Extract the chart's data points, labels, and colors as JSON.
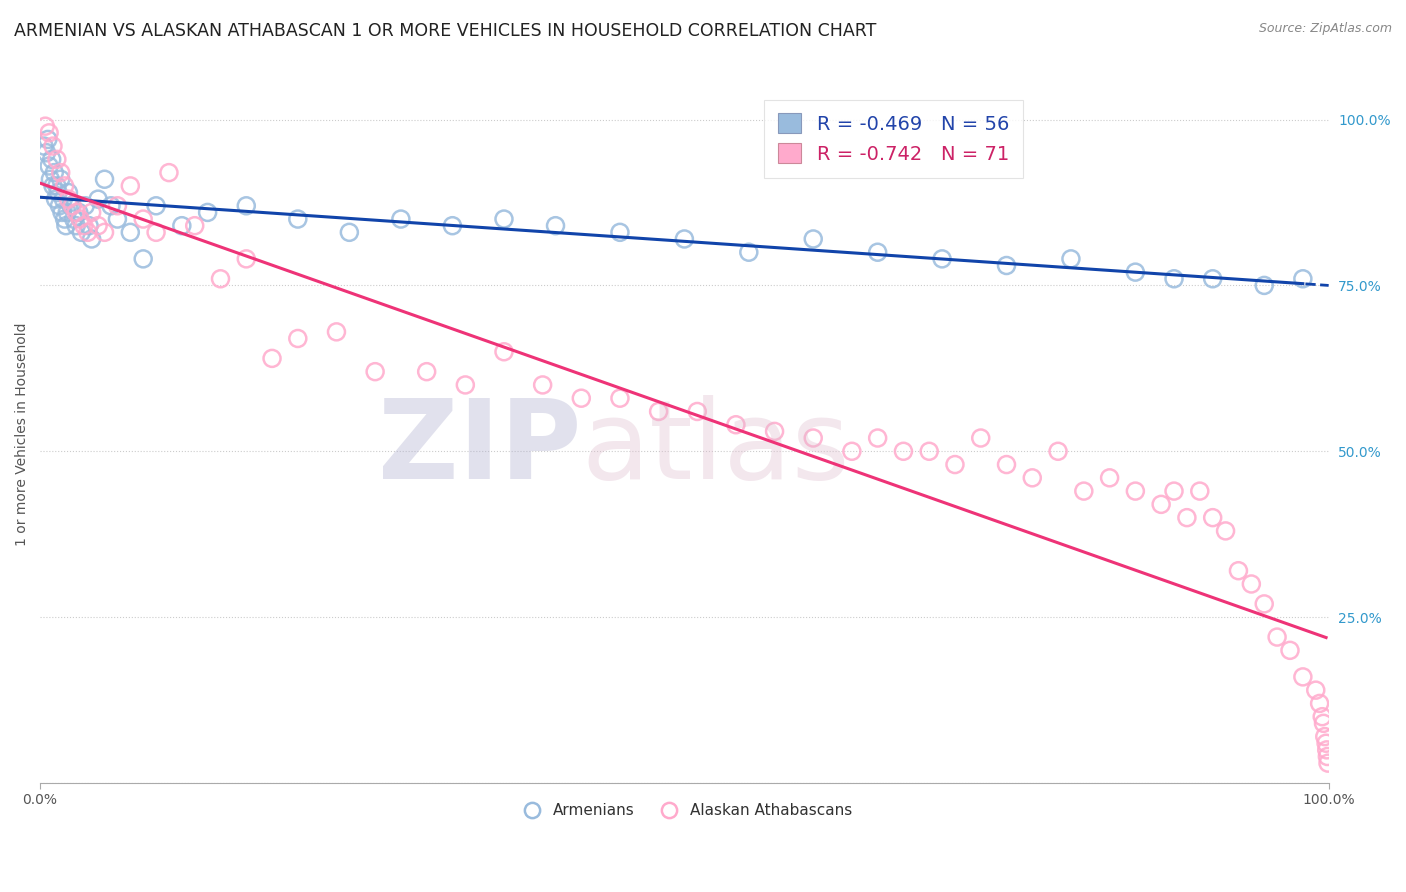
{
  "title": "ARMENIAN VS ALASKAN ATHABASCAN 1 OR MORE VEHICLES IN HOUSEHOLD CORRELATION CHART",
  "source_text": "Source: ZipAtlas.com",
  "ylabel": "1 or more Vehicles in Household",
  "legend_armenians": "Armenians",
  "legend_athabascan": "Alaskan Athabascans",
  "r_armenian": -0.469,
  "n_armenian": 56,
  "r_athabascan": -0.742,
  "n_athabascan": 71,
  "color_blue": "#99BBDD",
  "color_pink": "#FFAACC",
  "trend_blue": "#1144AA",
  "trend_pink": "#EE3377",
  "xlim": [
    0.0,
    100.0
  ],
  "ylim": [
    0.0,
    105.0
  ],
  "yticks": [
    0.0,
    25.0,
    50.0,
    75.0,
    100.0
  ],
  "grid_color": "#CCCCCC",
  "background_color": "#FFFFFF",
  "title_fontsize": 12.5,
  "axis_label_fontsize": 10,
  "tick_fontsize": 10,
  "source_fontsize": 9,
  "blue_x": [
    0.3,
    0.5,
    0.6,
    0.7,
    0.8,
    0.9,
    1.0,
    1.1,
    1.2,
    1.3,
    1.4,
    1.5,
    1.6,
    1.7,
    1.8,
    1.9,
    2.0,
    2.1,
    2.2,
    2.4,
    2.6,
    2.8,
    3.0,
    3.2,
    3.5,
    3.8,
    4.0,
    4.5,
    5.0,
    5.5,
    6.0,
    7.0,
    8.0,
    9.0,
    11.0,
    13.0,
    16.0,
    20.0,
    24.0,
    28.0,
    32.0,
    36.0,
    40.0,
    45.0,
    50.0,
    55.0,
    60.0,
    65.0,
    70.0,
    75.0,
    80.0,
    85.0,
    88.0,
    91.0,
    95.0,
    98.0
  ],
  "blue_y": [
    96,
    95,
    97,
    93,
    91,
    94,
    90,
    92,
    88,
    90,
    89,
    87,
    91,
    86,
    88,
    85,
    84,
    86,
    89,
    87,
    85,
    84,
    86,
    83,
    87,
    84,
    82,
    88,
    91,
    87,
    85,
    83,
    79,
    87,
    84,
    86,
    87,
    85,
    83,
    85,
    84,
    85,
    84,
    83,
    82,
    80,
    82,
    80,
    79,
    78,
    79,
    77,
    76,
    76,
    75,
    76
  ],
  "pink_x": [
    0.4,
    0.7,
    1.0,
    1.3,
    1.6,
    1.9,
    2.2,
    2.5,
    2.8,
    3.1,
    3.4,
    3.7,
    4.0,
    4.5,
    5.0,
    6.0,
    7.0,
    8.0,
    9.0,
    10.0,
    12.0,
    14.0,
    16.0,
    18.0,
    20.0,
    23.0,
    26.0,
    30.0,
    33.0,
    36.0,
    39.0,
    42.0,
    45.0,
    48.0,
    51.0,
    54.0,
    57.0,
    60.0,
    63.0,
    65.0,
    67.0,
    69.0,
    71.0,
    73.0,
    75.0,
    77.0,
    79.0,
    81.0,
    83.0,
    85.0,
    87.0,
    88.0,
    89.0,
    90.0,
    91.0,
    92.0,
    93.0,
    94.0,
    95.0,
    96.0,
    97.0,
    98.0,
    99.0,
    99.3,
    99.5,
    99.6,
    99.7,
    99.8,
    99.85,
    99.9,
    99.95
  ],
  "pink_y": [
    99,
    98,
    96,
    94,
    92,
    90,
    88,
    87,
    86,
    85,
    84,
    83,
    86,
    84,
    83,
    87,
    90,
    85,
    83,
    92,
    84,
    76,
    79,
    64,
    67,
    68,
    62,
    62,
    60,
    65,
    60,
    58,
    58,
    56,
    56,
    54,
    53,
    52,
    50,
    52,
    50,
    50,
    48,
    52,
    48,
    46,
    50,
    44,
    46,
    44,
    42,
    44,
    40,
    44,
    40,
    38,
    32,
    30,
    27,
    22,
    20,
    16,
    14,
    12,
    10,
    9,
    7,
    6,
    5,
    4,
    3
  ]
}
